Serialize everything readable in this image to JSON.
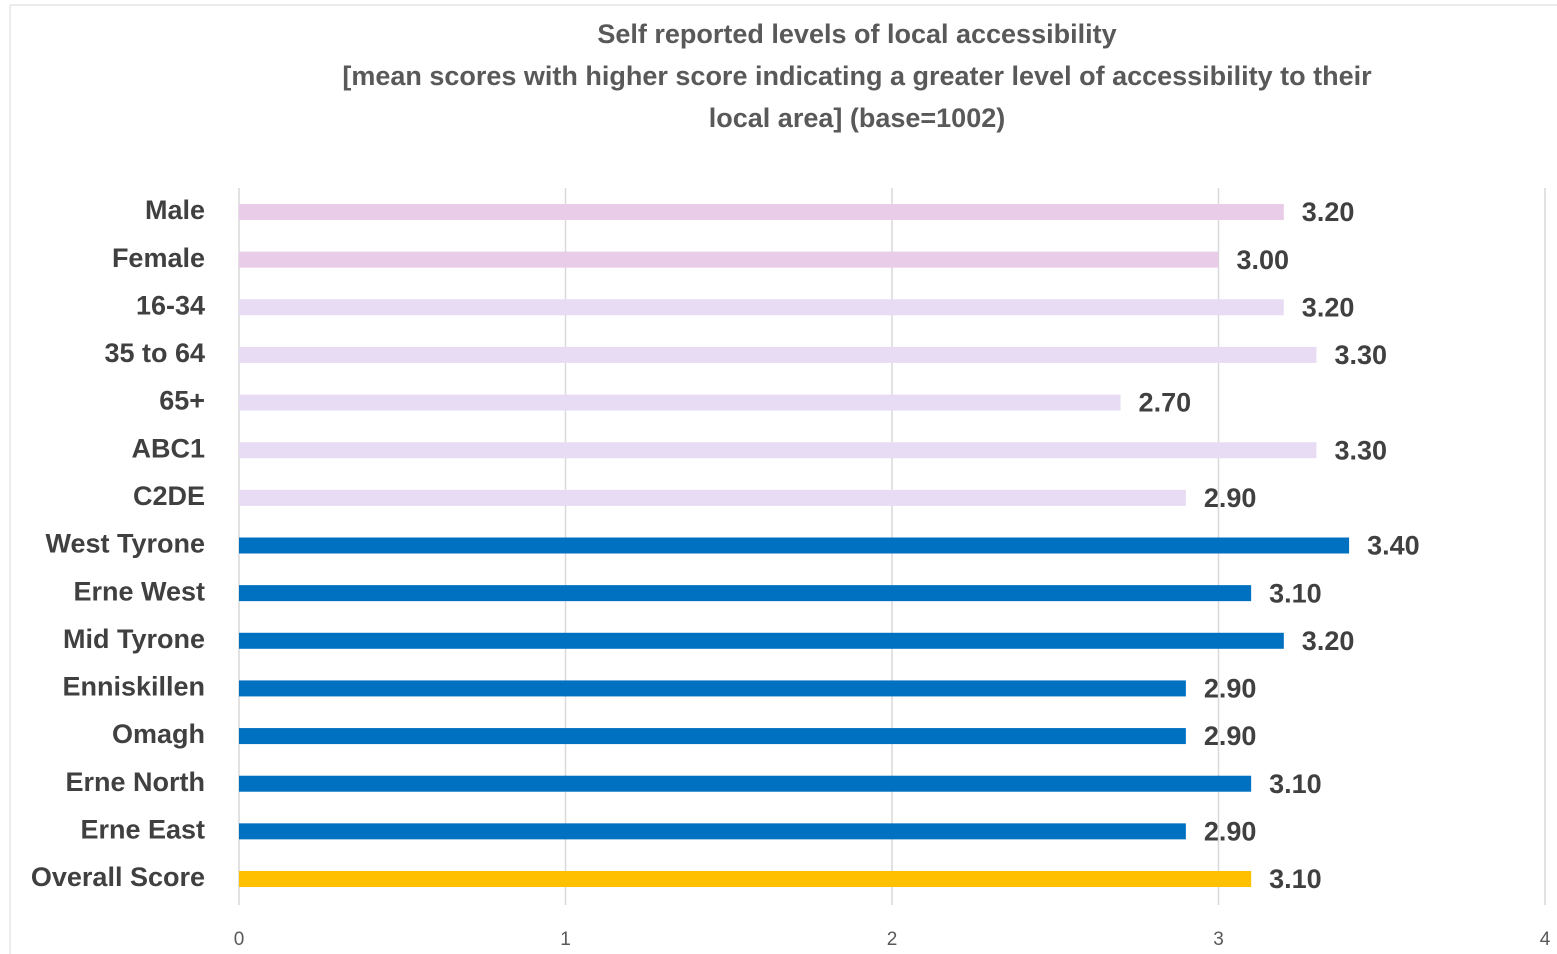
{
  "chart_data": {
    "type": "bar",
    "orientation": "horizontal",
    "title": [
      "Self reported levels of local accessibility",
      "[mean scores with higher score indicating a greater level of accessibility to their",
      "local area] (base=1002)"
    ],
    "categories": [
      "Male",
      "Female",
      "16-34",
      "35 to 64",
      "65+",
      "ABC1",
      "C2DE",
      "West Tyrone",
      "Erne West",
      "Mid Tyrone",
      "Enniskillen",
      "Omagh",
      "Erne North",
      "Erne East",
      "Overall Score"
    ],
    "values": [
      3.2,
      3.0,
      3.2,
      3.3,
      2.7,
      3.3,
      2.9,
      3.4,
      3.1,
      3.2,
      2.9,
      2.9,
      3.1,
      2.9,
      3.1
    ],
    "value_labels": [
      "3.20",
      "3.00",
      "3.20",
      "3.30",
      "2.70",
      "3.30",
      "2.90",
      "3.40",
      "3.10",
      "3.20",
      "2.90",
      "2.90",
      "3.10",
      "2.90",
      "3.10"
    ],
    "colors": [
      "#e8cce8",
      "#e8cce8",
      "#e8dcf4",
      "#e8dcf4",
      "#e8dcf4",
      "#e8dcf4",
      "#e8dcf4",
      "#0070c0",
      "#0070c0",
      "#0070c0",
      "#0070c0",
      "#0070c0",
      "#0070c0",
      "#0070c0",
      "#ffc000"
    ],
    "xlim": [
      0,
      4
    ],
    "xticks": [
      0,
      1,
      2,
      3,
      4
    ],
    "grid": true
  }
}
